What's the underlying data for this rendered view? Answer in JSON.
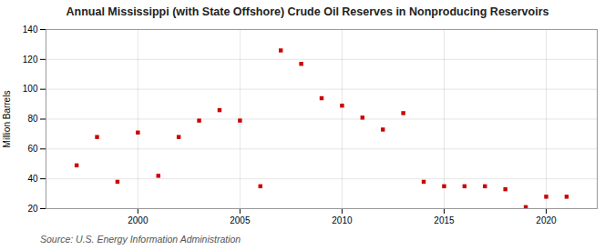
{
  "chart_data": {
    "type": "scatter",
    "title": "Annual Mississippi (with State Offshore) Crude Oil Reserves in Nonproducing Reservoirs",
    "ylabel": "Million Barrels",
    "annotation": "Source: U.S. Energy Information Administration",
    "x": [
      1997,
      1998,
      1999,
      2000,
      2001,
      2002,
      2003,
      2004,
      2005,
      2006,
      2007,
      2008,
      2009,
      2010,
      2011,
      2012,
      2013,
      2014,
      2015,
      2016,
      2017,
      2018,
      2019,
      2020,
      2021
    ],
    "values": [
      49,
      68,
      38,
      71,
      42,
      68,
      79,
      86,
      79,
      35,
      126,
      117,
      94,
      89,
      81,
      73,
      84,
      38,
      35,
      35,
      35,
      33,
      21,
      28,
      28
    ],
    "color": "#cc0000",
    "marker": "square",
    "xlim": [
      1995.5,
      2022.5
    ],
    "ylim": [
      20,
      140
    ],
    "xticks": [
      2000,
      2005,
      2010,
      2015,
      2020
    ],
    "yticks": [
      20,
      40,
      60,
      80,
      100,
      120,
      140
    ],
    "grid": true
  }
}
